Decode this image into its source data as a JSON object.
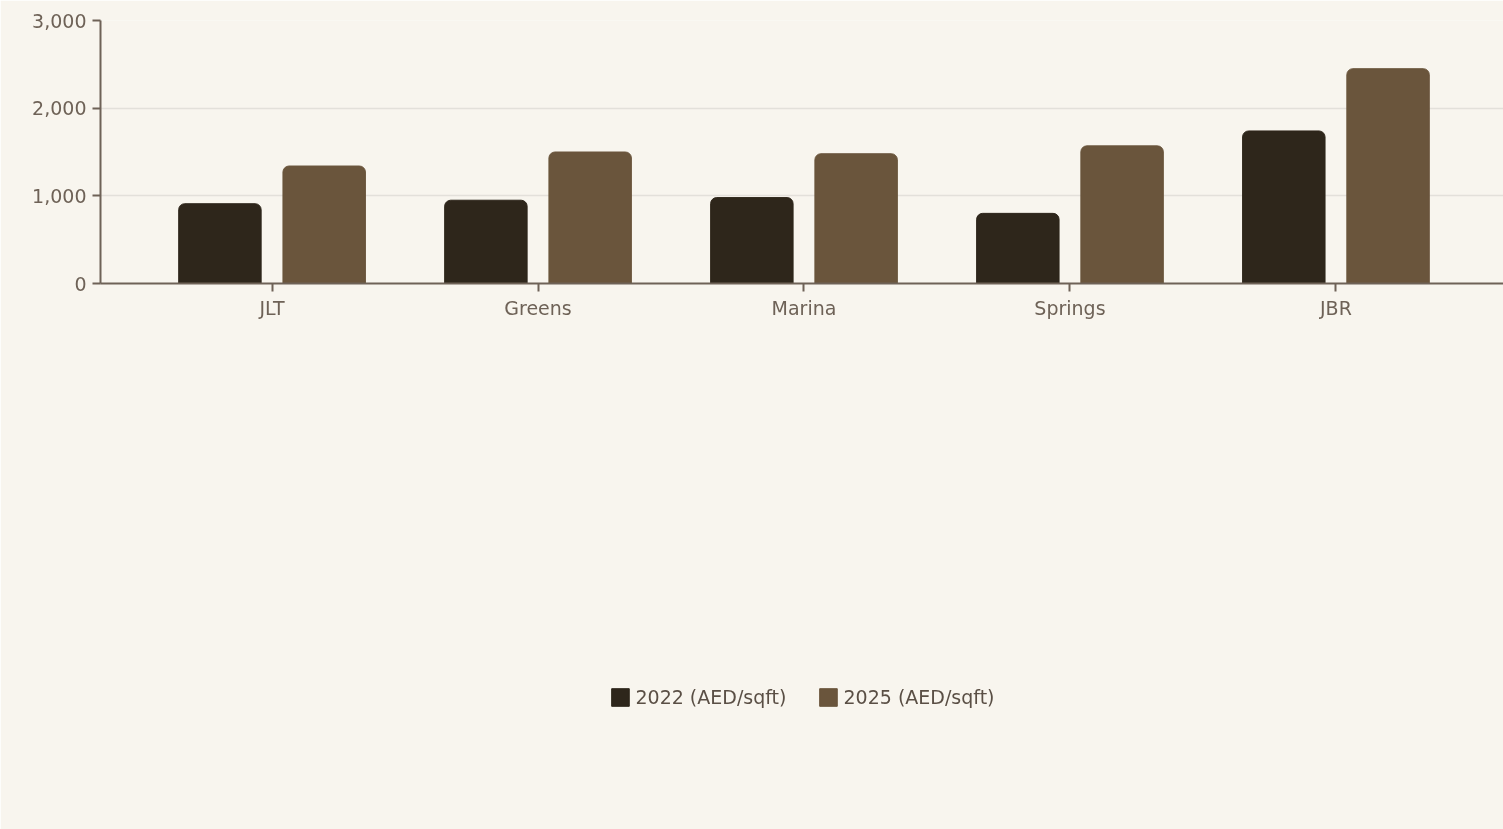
{
  "chart_data": {
    "type": "bar",
    "categories": [
      "JLT",
      "Greens",
      "Marina",
      "Springs",
      "JBR"
    ],
    "series": [
      {
        "name": "2022 (AED/sqft)",
        "color": "#2e261b",
        "values": [
          910,
          950,
          980,
          800,
          1740
        ]
      },
      {
        "name": "2025 (AED/sqft)",
        "color": "#6a553c",
        "values": [
          1340,
          1500,
          1480,
          1570,
          2450
        ]
      }
    ],
    "ylim": [
      0,
      3000
    ],
    "yticks": [
      0,
      {
        "value": 1000,
        "label": "1,000"
      },
      {
        "value": 2000,
        "label": "2,000"
      },
      {
        "value": 3000,
        "label": "3,000"
      }
    ],
    "grid": "y",
    "legend": "bottom"
  }
}
